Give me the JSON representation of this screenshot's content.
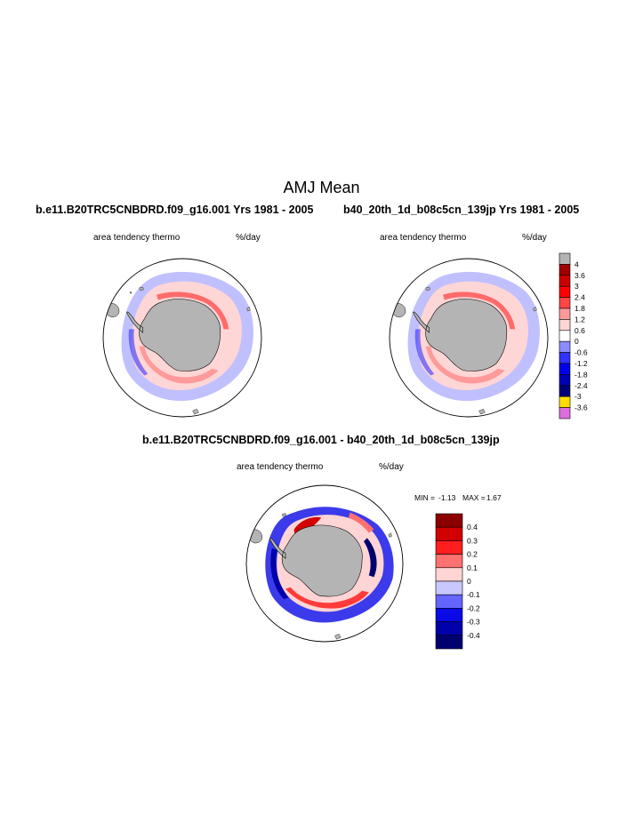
{
  "title": "AMJ Mean",
  "panel_left": {
    "run_title": "b.e11.B20TRC5CNBDRD.f09_g16.001  Yrs 1981 - 2005",
    "variable_label": "area tendency thermo",
    "units_label": "%/day"
  },
  "panel_right": {
    "run_title": "b40_20th_1d_b08c5cn_139jp  Yrs 1981 - 2005",
    "variable_label": "area tendency thermo",
    "units_label": "%/day"
  },
  "panel_diff": {
    "run_title": "b.e11.B20TRC5CNBDRD.f09_g16.001 - b40_20th_1d_b08c5cn_139jp",
    "variable_label": "area tendency thermo",
    "units_label": "%/day",
    "min_label": "MIN =",
    "min_value": "-1.13",
    "max_label": "MAX =",
    "max_value": "1.67"
  },
  "colorbar_main": {
    "labels": [
      "4",
      "3.6",
      "3",
      "2.4",
      "1.8",
      "1.2",
      "0.6",
      "0",
      "-0.6",
      "-1.2",
      "-1.8",
      "-2.4",
      "-3",
      "-3.6"
    ],
    "colors": [
      "#b4b4b4",
      "#a00000",
      "#cc0000",
      "#ff0000",
      "#ff4545",
      "#ff9a9a",
      "#ffd6d6",
      "#ffffff",
      "#8c8cff",
      "#3232ff",
      "#0000ee",
      "#0000b4",
      "#000078",
      "#ffdc00",
      "#dd6fdd"
    ]
  },
  "colorbar_diff": {
    "labels": [
      "0.4",
      "0.3",
      "0.2",
      "0.1",
      "0",
      "-0.1",
      "-0.2",
      "-0.3",
      "-0.4"
    ],
    "colors": [
      "#8c0000",
      "#d20000",
      "#ff1e1e",
      "#ff7070",
      "#ffd4d4",
      "#c8c8ff",
      "#6464ff",
      "#0a0ae6",
      "#0000aa",
      "#00006e"
    ]
  }
}
